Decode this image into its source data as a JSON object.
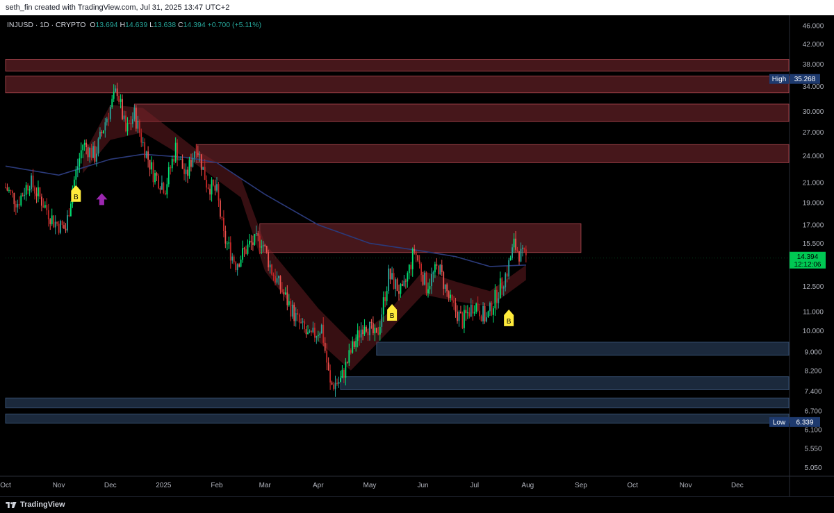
{
  "header": {
    "caption": "seth_fin created with TradingView.com, Jul 31, 2025 13:47 UTC+2"
  },
  "legend": {
    "symbol": "INJUSD · 1D · CRYPTO",
    "open_label": "O",
    "open": "13.694",
    "high_label": "H",
    "high": "14.639",
    "low_label": "L",
    "low": "13.638",
    "close_label": "C",
    "close": "14.394",
    "change": "+0.700 (+5.11%)"
  },
  "footer": {
    "brand": "TradingView"
  },
  "colors": {
    "up": "#26a69a",
    "up_bright": "#00e676",
    "down": "#ef5350",
    "down_dark": "#c62828",
    "resistance_zone": "#5d1f24",
    "support_zone": "#1c2b3f",
    "ma_line": "#2b3a7a",
    "price_label_bg": "#00c853",
    "high_low_label_bg": "#1e3a6e",
    "buy_marker": "#ffeb3b",
    "arrow_marker": "#9c27b0"
  },
  "chart_data": {
    "type": "candlestick",
    "scale": "log",
    "y_ticks": [
      46,
      42,
      38,
      34,
      30,
      27,
      24,
      21,
      19,
      17,
      15.5,
      12.5,
      11,
      10,
      9,
      8.2,
      7.4,
      6.7,
      6.1,
      5.55,
      5.05
    ],
    "y_tick_labels": [
      "46.000",
      "42.000",
      "38.000",
      "34.000",
      "30.000",
      "27.000",
      "24.000",
      "21.000",
      "19.000",
      "17.000",
      "15.500",
      "12.500",
      "11.000",
      "10.000",
      "9.000",
      "8.200",
      "7.400",
      "6.700",
      "6.100",
      "5.550",
      "5.050"
    ],
    "x_tick_labels": [
      "Oct",
      "Nov",
      "Dec",
      "2025",
      "Feb",
      "Mar",
      "Apr",
      "May",
      "Jun",
      "Jul",
      "Aug",
      "Sep",
      "Oct",
      "Nov",
      "Dec"
    ],
    "x_tick_dates": [
      "2024-10-01",
      "2024-11-01",
      "2024-12-01",
      "2025-01-01",
      "2025-02-01",
      "2025-03-01",
      "2025-04-01",
      "2025-05-01",
      "2025-06-01",
      "2025-07-01",
      "2025-08-01",
      "2025-09-01",
      "2025-10-01",
      "2025-11-01",
      "2025-12-01"
    ],
    "date_range": [
      "2024-10-01",
      "2025-12-31"
    ],
    "price_range": [
      4.85,
      48.5
    ],
    "current_price": {
      "label": "14.394",
      "countdown": "12:12:06",
      "value": 14.394
    },
    "high_marker": {
      "label": "High",
      "value_text": "35.268",
      "value": 35.268
    },
    "low_marker": {
      "label": "Low",
      "value_text": "6.339",
      "value": 6.339
    },
    "resistance_zones": [
      {
        "from": "2024-10-01",
        "to": "2025-12-31",
        "low": 36.7,
        "high": 38.9
      },
      {
        "from": "2024-10-01",
        "to": "2025-12-31",
        "low": 32.9,
        "high": 35.8
      },
      {
        "from": "2024-12-15",
        "to": "2025-12-31",
        "low": 28.5,
        "high": 31.1
      },
      {
        "from": "2025-01-20",
        "to": "2025-12-31",
        "low": 23.2,
        "high": 25.4
      },
      {
        "from": "2025-02-26",
        "to": "2025-09-01",
        "low": 14.8,
        "high": 17.1
      }
    ],
    "support_zones": [
      {
        "from": "2025-05-05",
        "to": "2025-12-31",
        "low": 8.85,
        "high": 9.45
      },
      {
        "from": "2025-04-14",
        "to": "2025-12-31",
        "low": 7.45,
        "high": 7.95
      },
      {
        "from": "2024-10-01",
        "to": "2025-12-31",
        "low": 6.8,
        "high": 7.15
      },
      {
        "from": "2024-10-01",
        "to": "2025-12-31",
        "low": 6.3,
        "high": 6.6
      }
    ],
    "buy_markers": [
      {
        "date": "2024-11-11",
        "price": 20.3,
        "label": "B"
      },
      {
        "date": "2025-05-14",
        "price": 11.2,
        "label": "B"
      },
      {
        "date": "2025-07-21",
        "price": 10.9,
        "label": "B"
      }
    ],
    "arrow_markers": [
      {
        "date": "2024-11-26",
        "price": 19.3
      }
    ],
    "ma_line": [
      [
        "2024-10-01",
        22.8
      ],
      [
        "2024-11-01",
        21.8
      ],
      [
        "2024-12-01",
        23.6
      ],
      [
        "2024-12-20",
        24.2
      ],
      [
        "2025-01-15",
        23.8
      ],
      [
        "2025-02-01",
        23.2
      ],
      [
        "2025-03-01",
        19.8
      ],
      [
        "2025-04-01",
        17.0
      ],
      [
        "2025-05-01",
        15.5
      ],
      [
        "2025-06-01",
        14.9
      ],
      [
        "2025-06-20",
        14.5
      ],
      [
        "2025-07-10",
        13.8
      ],
      [
        "2025-07-31",
        13.9
      ]
    ],
    "cloud_band": [
      [
        "2024-11-15",
        22.0,
        24.0
      ],
      [
        "2024-12-01",
        26.0,
        31.0
      ],
      [
        "2024-12-20",
        27.0,
        30.5
      ],
      [
        "2025-01-20",
        23.0,
        24.8
      ],
      [
        "2025-02-15",
        19.5,
        21.5
      ],
      [
        "2025-03-01",
        13.5,
        15.5
      ],
      [
        "2025-04-01",
        9.5,
        11.2
      ],
      [
        "2025-04-20",
        8.2,
        9.5
      ],
      [
        "2025-05-10",
        9.8,
        10.8
      ],
      [
        "2025-06-01",
        12.0,
        13.5
      ],
      [
        "2025-06-20",
        11.6,
        12.8
      ],
      [
        "2025-07-10",
        11.3,
        12.2
      ],
      [
        "2025-07-31",
        12.9,
        13.9
      ]
    ],
    "candles_anchor": [
      [
        "2024-10-01",
        20.5
      ],
      [
        "2024-10-08",
        19.0
      ],
      [
        "2024-10-15",
        21.2
      ],
      [
        "2024-10-22",
        19.2
      ],
      [
        "2024-10-29",
        17.3
      ],
      [
        "2024-11-05",
        16.6
      ],
      [
        "2024-11-09",
        20.5
      ],
      [
        "2024-11-15",
        25.5
      ],
      [
        "2024-11-22",
        24.0
      ],
      [
        "2024-11-28",
        28.5
      ],
      [
        "2024-12-05",
        33.5
      ],
      [
        "2024-12-10",
        27.0
      ],
      [
        "2024-12-15",
        29.5
      ],
      [
        "2024-12-20",
        25.5
      ],
      [
        "2024-12-26",
        22.0
      ],
      [
        "2025-01-02",
        20.5
      ],
      [
        "2025-01-08",
        25.0
      ],
      [
        "2025-01-14",
        21.5
      ],
      [
        "2025-01-20",
        25.5
      ],
      [
        "2025-01-26",
        21.0
      ],
      [
        "2025-02-01",
        20.0
      ],
      [
        "2025-02-05",
        16.0
      ],
      [
        "2025-02-12",
        14.0
      ],
      [
        "2025-02-20",
        15.4
      ],
      [
        "2025-02-27",
        15.8
      ],
      [
        "2025-03-05",
        13.5
      ],
      [
        "2025-03-12",
        12.0
      ],
      [
        "2025-03-20",
        10.5
      ],
      [
        "2025-03-27",
        9.6
      ],
      [
        "2025-04-03",
        10.2
      ],
      [
        "2025-04-08",
        7.6
      ],
      [
        "2025-04-14",
        7.8
      ],
      [
        "2025-04-20",
        9.0
      ],
      [
        "2025-04-28",
        10.5
      ],
      [
        "2025-05-05",
        9.6
      ],
      [
        "2025-05-12",
        13.2
      ],
      [
        "2025-05-20",
        12.0
      ],
      [
        "2025-05-27",
        15.0
      ],
      [
        "2025-06-03",
        12.5
      ],
      [
        "2025-06-10",
        13.8
      ],
      [
        "2025-06-17",
        11.5
      ],
      [
        "2025-06-24",
        10.5
      ],
      [
        "2025-07-01",
        11.5
      ],
      [
        "2025-07-08",
        10.6
      ],
      [
        "2025-07-14",
        12.0
      ],
      [
        "2025-07-20",
        13.5
      ],
      [
        "2025-07-24",
        15.4
      ],
      [
        "2025-07-28",
        14.6
      ],
      [
        "2025-07-31",
        14.394
      ]
    ]
  }
}
